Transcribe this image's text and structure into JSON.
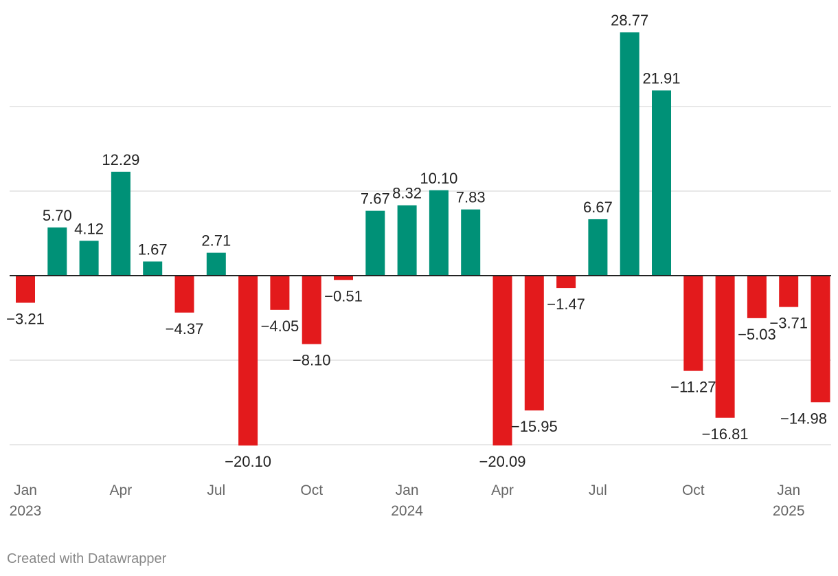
{
  "chart_data": {
    "type": "bar",
    "title": "",
    "xlabel": "",
    "ylabel": "",
    "ylim": [
      -20.1,
      28.77
    ],
    "gridlines": [
      -20,
      -10,
      0,
      10,
      20
    ],
    "categories": [
      "Jan 2023",
      "Feb 2023",
      "Mar 2023",
      "Apr 2023",
      "May 2023",
      "Jun 2023",
      "Jul 2023",
      "Aug 2023",
      "Sep 2023",
      "Oct 2023",
      "Nov 2023",
      "Dec 2023",
      "Jan 2024",
      "Feb 2024",
      "Mar 2024",
      "Apr 2024",
      "May 2024",
      "Jun 2024",
      "Jul 2024",
      "Aug 2024",
      "Sep 2024",
      "Oct 2024",
      "Nov 2024",
      "Dec 2024",
      "Jan 2025",
      "Feb 2025"
    ],
    "values": [
      -3.21,
      5.7,
      4.12,
      12.29,
      1.67,
      -4.37,
      2.71,
      -20.1,
      -4.05,
      -8.1,
      -0.51,
      7.67,
      8.32,
      10.1,
      7.83,
      -20.09,
      -15.95,
      -1.47,
      6.67,
      28.77,
      21.91,
      -11.27,
      -16.81,
      -5.03,
      -3.71,
      -14.98
    ],
    "labels": [
      "−3.21",
      "5.70",
      "4.12",
      "12.29",
      "1.67",
      "−4.37",
      "2.71",
      "−20.10",
      "−4.05",
      "−8.10",
      "−0.51",
      "7.67",
      "8.32",
      "10.10",
      "7.83",
      "−20.09",
      "−15.95",
      "−1.47",
      "6.67",
      "28.77",
      "21.91",
      "−11.27",
      "−16.81",
      "−5.03",
      "−3.71",
      "−14.98"
    ],
    "x_ticks": [
      {
        "index": 0,
        "month": "Jan",
        "year": "2023"
      },
      {
        "index": 3,
        "month": "Apr",
        "year": ""
      },
      {
        "index": 6,
        "month": "Jul",
        "year": ""
      },
      {
        "index": 9,
        "month": "Oct",
        "year": ""
      },
      {
        "index": 12,
        "month": "Jan",
        "year": "2024"
      },
      {
        "index": 15,
        "month": "Apr",
        "year": ""
      },
      {
        "index": 18,
        "month": "Jul",
        "year": ""
      },
      {
        "index": 21,
        "month": "Oct",
        "year": ""
      },
      {
        "index": 24,
        "month": "Jan",
        "year": "2025"
      }
    ],
    "colors": {
      "positive": "#009177",
      "negative": "#e31a1c",
      "grid": "#e0e0e0",
      "zero_line": "#222222"
    }
  },
  "footer": {
    "credit": "Created with Datawrapper"
  }
}
